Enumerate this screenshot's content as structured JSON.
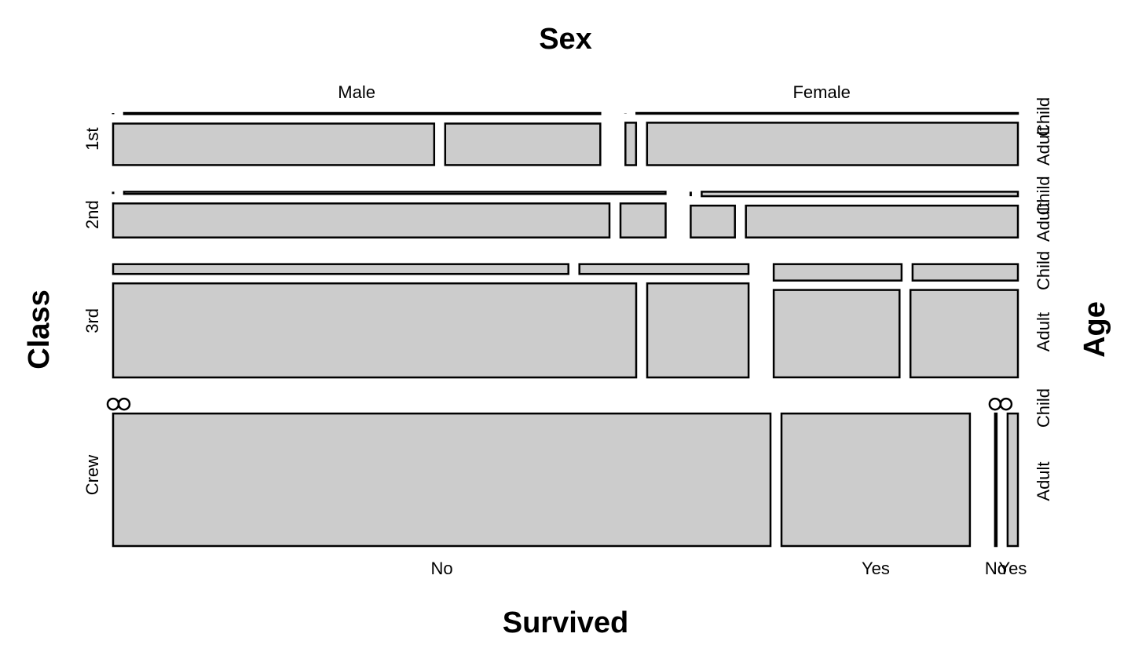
{
  "chart_data": {
    "type": "mosaic",
    "title": "",
    "axis_titles": {
      "top": "Sex",
      "left": "Class",
      "right": "Age",
      "bottom": "Survived"
    },
    "dimensions": {
      "Class": [
        "1st",
        "2nd",
        "3rd",
        "Crew"
      ],
      "Sex": [
        "Male",
        "Female"
      ],
      "Age": [
        "Child",
        "Adult"
      ],
      "Survived": [
        "No",
        "Yes"
      ]
    },
    "bottom_tick_labels": [
      "No",
      "Yes",
      "No",
      "Yes"
    ],
    "colors": {
      "tile": "#cccccc",
      "stroke": "#000000"
    },
    "counts": [
      {
        "class": "1st",
        "sex": "Male",
        "age": "Child",
        "survived": "No",
        "count": 0
      },
      {
        "class": "1st",
        "sex": "Male",
        "age": "Child",
        "survived": "Yes",
        "count": 5
      },
      {
        "class": "1st",
        "sex": "Male",
        "age": "Adult",
        "survived": "No",
        "count": 118
      },
      {
        "class": "1st",
        "sex": "Male",
        "age": "Adult",
        "survived": "Yes",
        "count": 57
      },
      {
        "class": "1st",
        "sex": "Female",
        "age": "Child",
        "survived": "No",
        "count": 0
      },
      {
        "class": "1st",
        "sex": "Female",
        "age": "Child",
        "survived": "Yes",
        "count": 1
      },
      {
        "class": "1st",
        "sex": "Female",
        "age": "Adult",
        "survived": "No",
        "count": 4
      },
      {
        "class": "1st",
        "sex": "Female",
        "age": "Adult",
        "survived": "Yes",
        "count": 140
      },
      {
        "class": "2nd",
        "sex": "Male",
        "age": "Child",
        "survived": "No",
        "count": 0
      },
      {
        "class": "2nd",
        "sex": "Male",
        "age": "Child",
        "survived": "Yes",
        "count": 11
      },
      {
        "class": "2nd",
        "sex": "Male",
        "age": "Adult",
        "survived": "No",
        "count": 154
      },
      {
        "class": "2nd",
        "sex": "Male",
        "age": "Adult",
        "survived": "Yes",
        "count": 14
      },
      {
        "class": "2nd",
        "sex": "Female",
        "age": "Child",
        "survived": "No",
        "count": 0
      },
      {
        "class": "2nd",
        "sex": "Female",
        "age": "Child",
        "survived": "Yes",
        "count": 13
      },
      {
        "class": "2nd",
        "sex": "Female",
        "age": "Adult",
        "survived": "No",
        "count": 13
      },
      {
        "class": "2nd",
        "sex": "Female",
        "age": "Adult",
        "survived": "Yes",
        "count": 80
      },
      {
        "class": "3rd",
        "sex": "Male",
        "age": "Child",
        "survived": "No",
        "count": 35
      },
      {
        "class": "3rd",
        "sex": "Male",
        "age": "Child",
        "survived": "Yes",
        "count": 13
      },
      {
        "class": "3rd",
        "sex": "Male",
        "age": "Adult",
        "survived": "No",
        "count": 387
      },
      {
        "class": "3rd",
        "sex": "Male",
        "age": "Adult",
        "survived": "Yes",
        "count": 75
      },
      {
        "class": "3rd",
        "sex": "Female",
        "age": "Child",
        "survived": "No",
        "count": 17
      },
      {
        "class": "3rd",
        "sex": "Female",
        "age": "Child",
        "survived": "Yes",
        "count": 14
      },
      {
        "class": "3rd",
        "sex": "Female",
        "age": "Adult",
        "survived": "No",
        "count": 89
      },
      {
        "class": "3rd",
        "sex": "Female",
        "age": "Adult",
        "survived": "Yes",
        "count": 76
      },
      {
        "class": "Crew",
        "sex": "Male",
        "age": "Child",
        "survived": "No",
        "count": 0
      },
      {
        "class": "Crew",
        "sex": "Male",
        "age": "Child",
        "survived": "Yes",
        "count": 0
      },
      {
        "class": "Crew",
        "sex": "Male",
        "age": "Adult",
        "survived": "No",
        "count": 670
      },
      {
        "class": "Crew",
        "sex": "Male",
        "age": "Adult",
        "survived": "Yes",
        "count": 192
      },
      {
        "class": "Crew",
        "sex": "Female",
        "age": "Child",
        "survived": "No",
        "count": 0
      },
      {
        "class": "Crew",
        "sex": "Female",
        "age": "Child",
        "survived": "Yes",
        "count": 0
      },
      {
        "class": "Crew",
        "sex": "Female",
        "age": "Adult",
        "survived": "No",
        "count": 3
      },
      {
        "class": "Crew",
        "sex": "Female",
        "age": "Adult",
        "survived": "Yes",
        "count": 20
      }
    ]
  }
}
